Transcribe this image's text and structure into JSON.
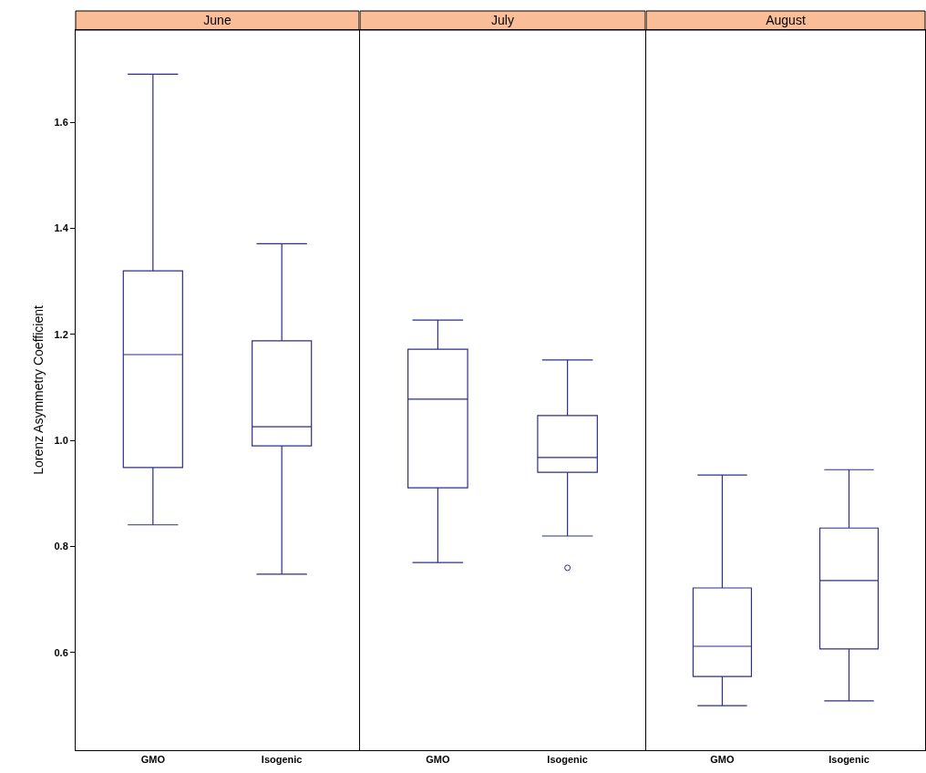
{
  "chart_data": [
    {
      "type": "box",
      "title": "June",
      "ylabel": "Lorenz Asymmetry Coefficient",
      "categories": [
        "GMO",
        "Isogenic"
      ],
      "color": "#2e2e8a",
      "ylim": [
        0.416,
        1.774
      ],
      "yticks": [
        0.6,
        0.8,
        {
          "value": 1,
          "label": "1.0"
        },
        1.2,
        1.4,
        1.6
      ],
      "boxes": [
        {
          "low": 0.841,
          "q1": 0.949,
          "median": 1.162,
          "q3": 1.32,
          "high": 1.691
        },
        {
          "low": 0.748,
          "q1": 0.99,
          "median": 1.026,
          "q3": 1.188,
          "high": 1.371
        }
      ]
    },
    {
      "type": "box",
      "title": "July",
      "categories": [
        "GMO",
        "Isogenic"
      ],
      "color": "#2e2e8a",
      "ylim": [
        0.416,
        1.774
      ],
      "tick_labels": "x",
      "boxes": [
        {
          "low": 0.77,
          "q1": 0.911,
          "median": 1.078,
          "q3": 1.172,
          "high": 1.227
        },
        {
          "low": 0.82,
          "q1": 0.94,
          "median": 0.968,
          "q3": 1.047,
          "high": 1.152,
          "outliers": [
            0.76
          ]
        }
      ]
    },
    {
      "type": "box",
      "title": "August",
      "categories": [
        "GMO",
        "Isogenic"
      ],
      "color": "#2e2e8a",
      "ylim": [
        0.416,
        1.774
      ],
      "tick_labels": "x",
      "boxes": [
        {
          "low": 0.5,
          "q1": 0.555,
          "median": 0.612,
          "q3": 0.722,
          "high": 0.935
        },
        {
          "low": 0.509,
          "q1": 0.607,
          "median": 0.736,
          "q3": 0.835,
          "high": 0.945
        }
      ]
    }
  ]
}
